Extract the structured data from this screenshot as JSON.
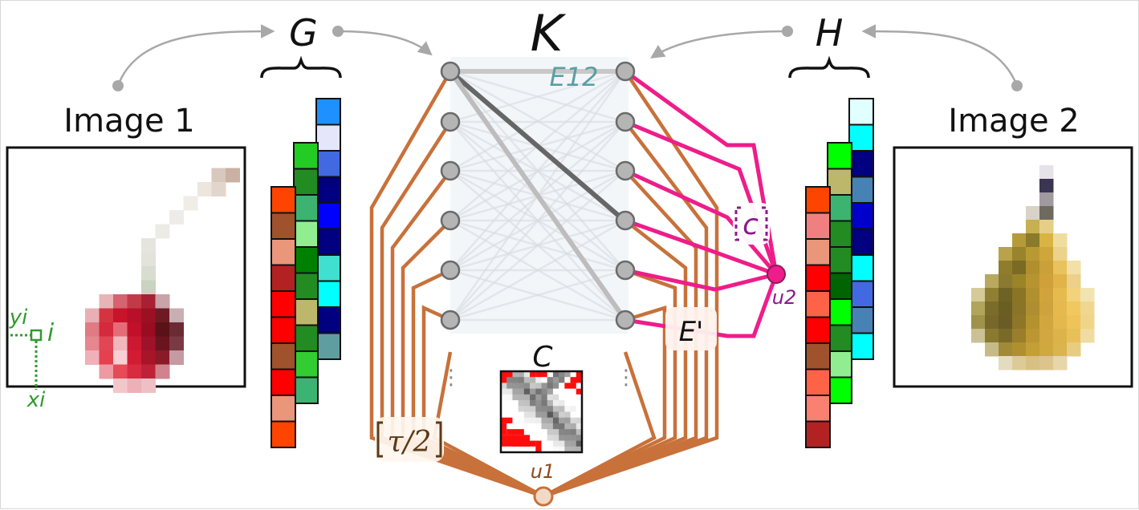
{
  "title": "K",
  "image1": {
    "label": "Image 1"
  },
  "image2": {
    "label": "Image 2"
  },
  "graph_g_label": "G",
  "graph_h_label": "H",
  "edge_set_label": "E12",
  "cost_matrix_label": "C",
  "node_u1_label": "u1",
  "node_u2_label": "u2",
  "eprime_label": "E'",
  "c_label": "c",
  "tau_label": "τ/2",
  "pixel_labels": {
    "y": "yi",
    "x": "xi",
    "i": "i"
  },
  "colors": {
    "orange_edges": "#c8713a",
    "magenta_edges": "#ee1d8a",
    "teal_label": "#5b9fa2",
    "green_annot": "#2e9b2e",
    "purple_label": "#8b1a8b",
    "arrow_gray": "#a8a8a8"
  },
  "g_feature_columns": [
    [
      "#ff4400",
      "#a0522d",
      "#e9967a",
      "#b22222",
      "#ff0000",
      "#ff0000",
      "#a0522d",
      "#ff0000",
      "#e9967a",
      "#ff4400"
    ],
    [
      "#22cc22",
      "#228b22",
      "#3cb371",
      "#90ee90",
      "#008000",
      "#228b22",
      "#bdb76b",
      "#228b22",
      "#32cd32",
      "#3cb371"
    ],
    [
      "#1e90ff",
      "#e6e6fa",
      "#4169e1",
      "#000080",
      "#0000ff",
      "#000080",
      "#40e0d0",
      "#00ffff",
      "#000080",
      "#5f9ea0"
    ]
  ],
  "h_feature_columns": [
    [
      "#ff4400",
      "#f08080",
      "#e9967a",
      "#ff0000",
      "#ff6347",
      "#ff0000",
      "#a0522d",
      "#ff6347",
      "#fa8072",
      "#b22222"
    ],
    [
      "#00ff00",
      "#bdb76b",
      "#3cb371",
      "#228b22",
      "#228b22",
      "#006400",
      "#00ff00",
      "#228b22",
      "#90ee90",
      "#00ff00"
    ],
    [
      "#e0ffff",
      "#00ffff",
      "#000080",
      "#4682b4",
      "#0000cd",
      "#000080",
      "#00ffff",
      "#4169e1",
      "#4682b4",
      "#00ffff"
    ]
  ],
  "icons": [
    "cherry-pixel-art",
    "pear-pixel-art"
  ]
}
